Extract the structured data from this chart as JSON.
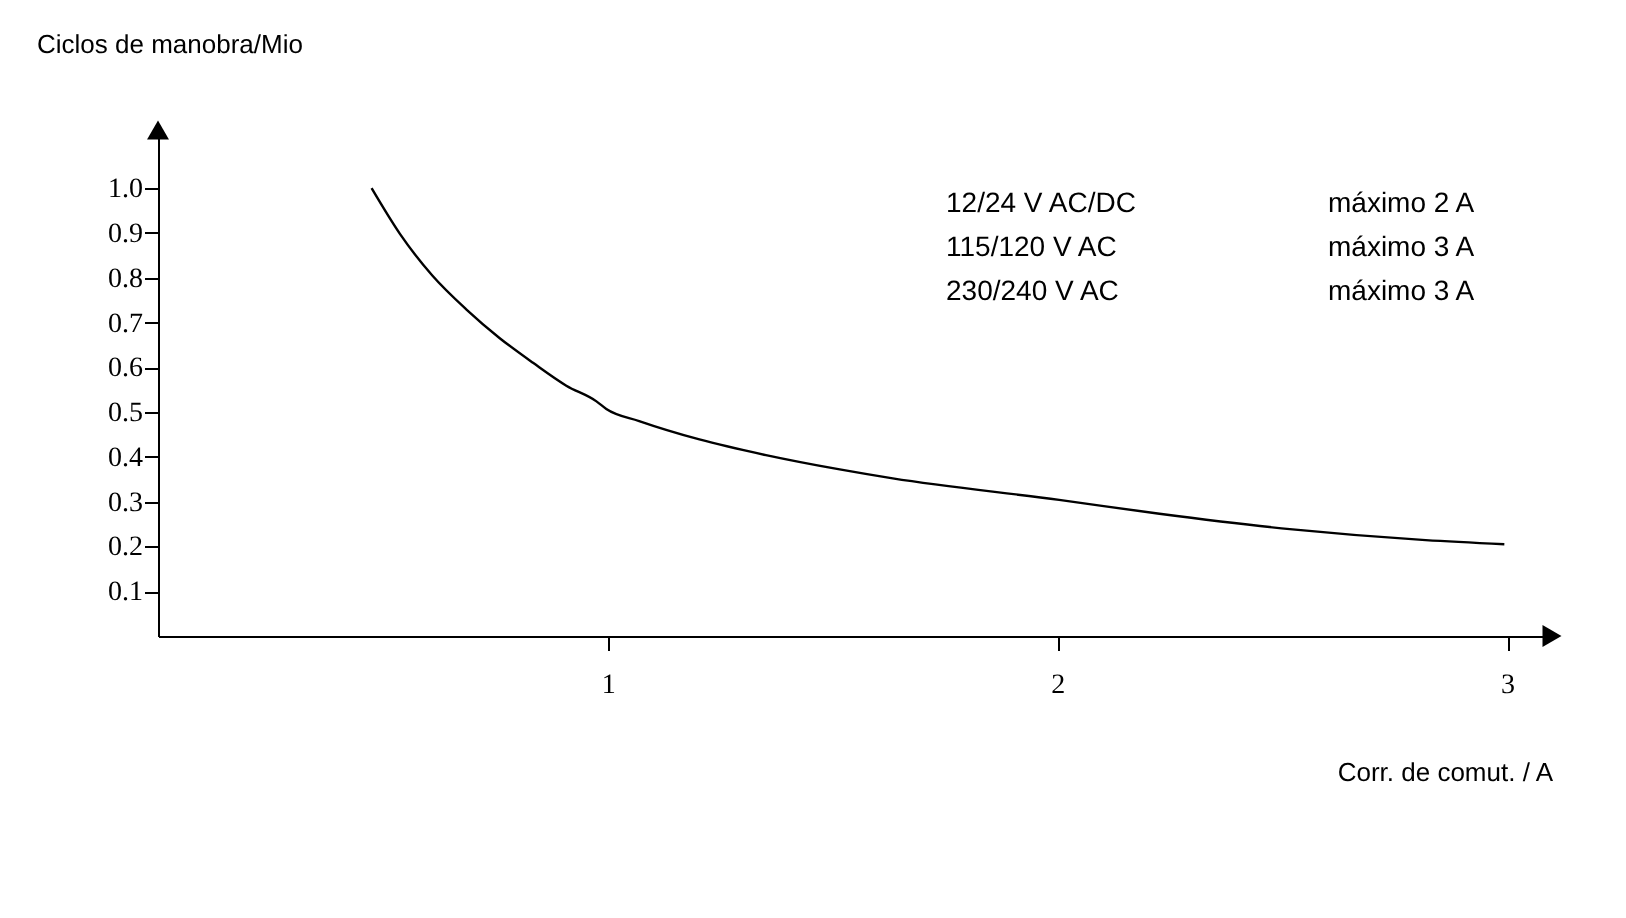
{
  "chart_data": {
    "type": "line",
    "xlabel": "Corr. de comut. / A",
    "ylabel": "Ciclos de manobra/Mio",
    "xlim": [
      0,
      3.1
    ],
    "ylim": [
      0,
      1.13
    ],
    "xticks": [
      1,
      2,
      3
    ],
    "yticks": [
      {
        "value": 0.1,
        "label": "0.1"
      },
      {
        "value": 0.2,
        "label": "0.2"
      },
      {
        "value": 0.3,
        "label": "0.3"
      },
      {
        "value": 0.4,
        "label": "0.4"
      },
      {
        "value": 0.5,
        "label": "0.5"
      },
      {
        "value": 0.6,
        "label": "0.6"
      },
      {
        "value": 0.7,
        "label": "0.7"
      },
      {
        "value": 0.8,
        "label": "0.8"
      },
      {
        "value": 0.9,
        "label": "0.9"
      },
      {
        "value": 1.0,
        "label": "1.0"
      }
    ],
    "series": [
      {
        "color": "#000000",
        "x": [
          0.475,
          0.538,
          0.61,
          0.686,
          0.76,
          0.834,
          0.908,
          0.975,
          0.997,
          1.07,
          1.204,
          1.352,
          1.516,
          1.634,
          2.004,
          2.227,
          2.523,
          2.819,
          2.994
        ],
        "values": [
          1.0,
          0.898,
          0.805,
          0.729,
          0.665,
          0.61,
          0.559,
          0.524,
          0.507,
          0.48,
          0.439,
          0.404,
          0.372,
          0.352,
          0.304,
          0.273,
          0.238,
          0.214,
          0.205
        ]
      }
    ],
    "annotations": [
      "12/24 V AC/DC",
      "máximo 2 A",
      "115/120 V AC",
      "máximo 3 A",
      "230/240 V AC",
      "máximo 3 A"
    ],
    "grid": false,
    "marker": "none",
    "line_style": "solid"
  }
}
